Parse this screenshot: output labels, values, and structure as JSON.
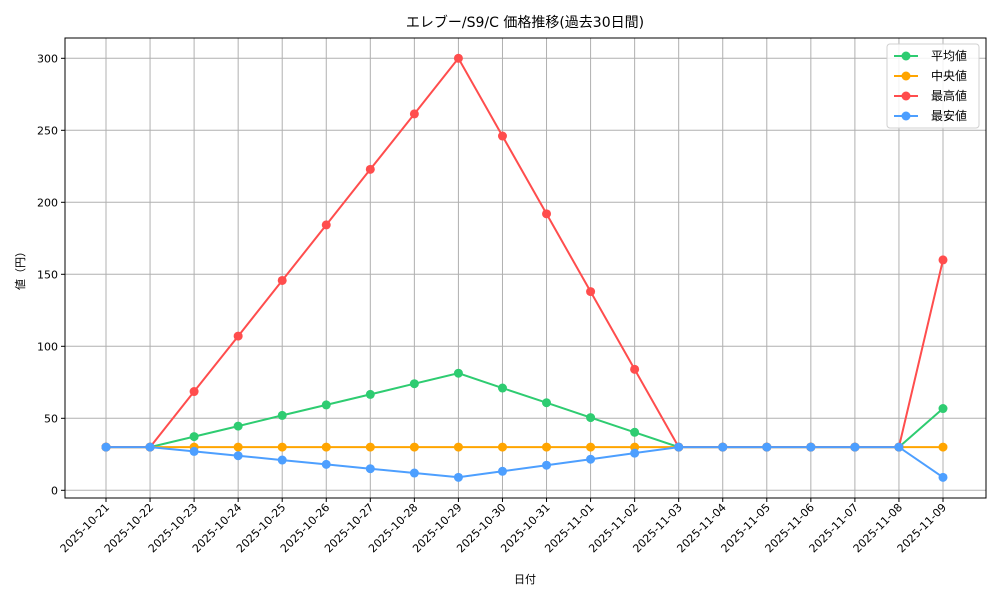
{
  "chart_data": {
    "type": "line",
    "title": "エレブー/S9/C 価格推移(過去30日間)",
    "xlabel": "日付",
    "ylabel": "値（円）",
    "ylim": [
      -8,
      313
    ],
    "yticks": [
      0,
      50,
      100,
      150,
      200,
      250,
      300
    ],
    "grid": true,
    "legend_position": "upper right",
    "x": [
      "2025-10-21",
      "2025-10-22",
      "2025-10-23",
      "2025-10-24",
      "2025-10-25",
      "2025-10-26",
      "2025-10-27",
      "2025-10-28",
      "2025-10-29",
      "2025-10-30",
      "2025-10-31",
      "2025-11-01",
      "2025-11-02",
      "2025-11-03",
      "2025-11-04",
      "2025-11-05",
      "2025-11-06",
      "2025-11-07",
      "2025-11-08",
      "2025-11-09"
    ],
    "series": [
      {
        "name": "平均値",
        "color": "#2ecc71",
        "values": [
          30,
          30,
          37.3,
          44.6,
          52.0,
          59.3,
          66.6,
          74.0,
          81.3,
          71.0,
          60.8,
          50.5,
          40.3,
          30,
          30,
          30,
          30,
          30,
          30,
          56.8
        ]
      },
      {
        "name": "中央値",
        "color": "#ffa500",
        "values": [
          30,
          30,
          30,
          30,
          30,
          30,
          30,
          30,
          30,
          30,
          30,
          30,
          30,
          30,
          30,
          30,
          30,
          30,
          30,
          30
        ]
      },
      {
        "name": "最高値",
        "color": "#ff4d4d",
        "values": [
          30,
          30,
          68.6,
          107.1,
          145.7,
          184.3,
          222.9,
          261.4,
          300,
          246,
          192,
          138,
          84,
          30,
          30,
          30,
          30,
          30,
          30,
          160
        ]
      },
      {
        "name": "最安値",
        "color": "#4d9fff",
        "values": [
          30,
          30,
          27.0,
          24.0,
          21.0,
          18.0,
          15.0,
          12.0,
          9.0,
          13.2,
          17.4,
          21.6,
          25.8,
          30,
          30,
          30,
          30,
          30,
          30,
          9
        ]
      }
    ]
  }
}
